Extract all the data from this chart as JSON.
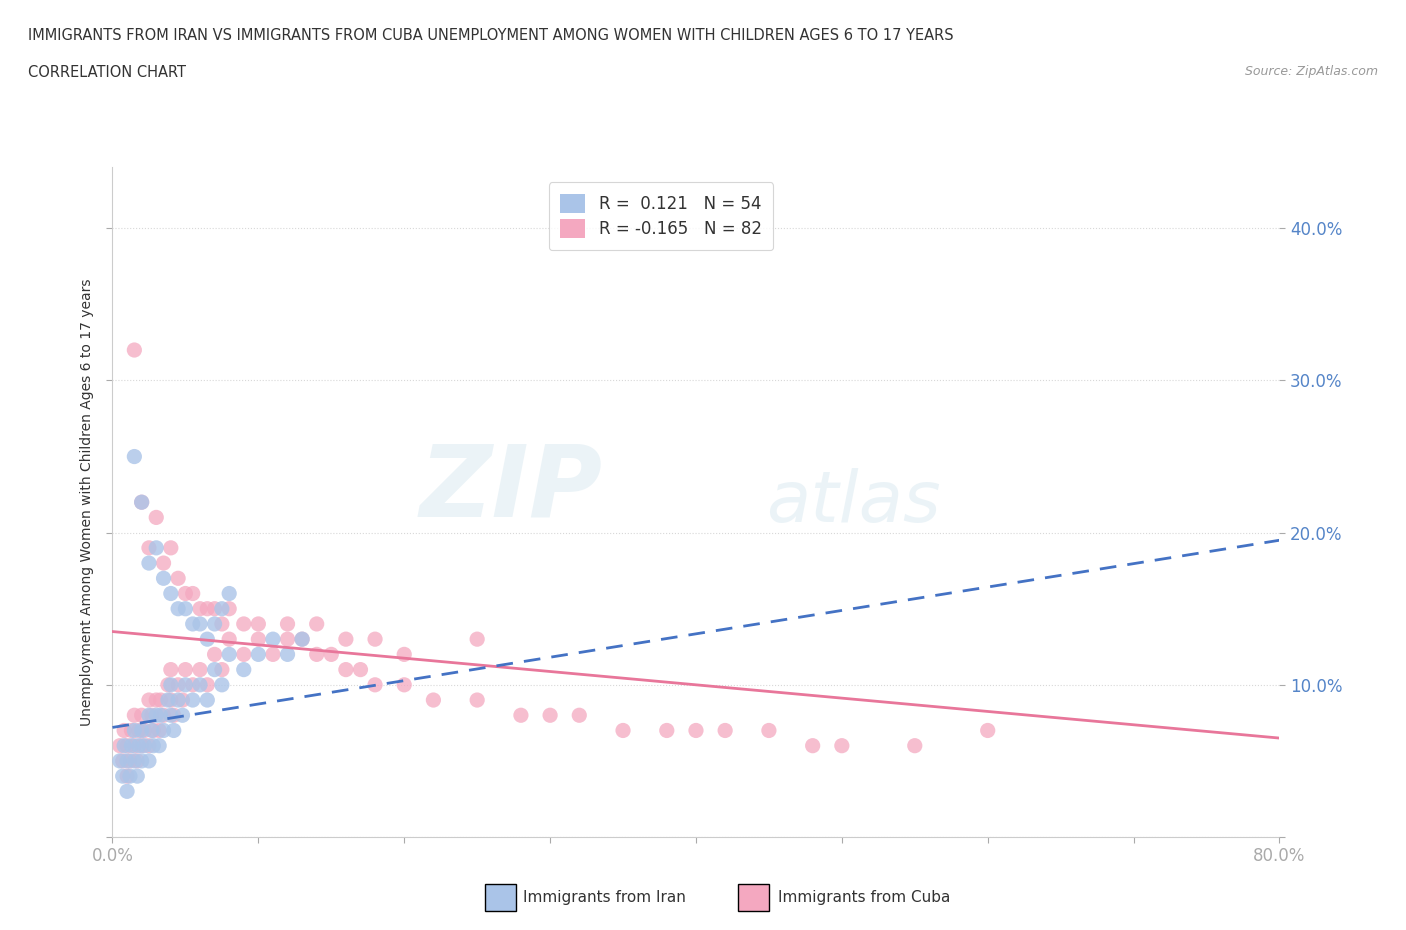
{
  "title_line1": "IMMIGRANTS FROM IRAN VS IMMIGRANTS FROM CUBA UNEMPLOYMENT AMONG WOMEN WITH CHILDREN AGES 6 TO 17 YEARS",
  "title_line2": "CORRELATION CHART",
  "source_text": "Source: ZipAtlas.com",
  "ylabel": "Unemployment Among Women with Children Ages 6 to 17 years",
  "xlim": [
    0.0,
    0.8
  ],
  "ylim": [
    0.0,
    0.44
  ],
  "iran_color": "#aac4e8",
  "cuba_color": "#f4a8c0",
  "iran_line_color": "#4472c4",
  "cuba_line_color": "#e8769a",
  "R_iran": 0.121,
  "N_iran": 54,
  "R_cuba": -0.165,
  "N_cuba": 82,
  "background_color": "#ffffff",
  "grid_color": "#d8d8d8",
  "iran_x": [
    0.005,
    0.007,
    0.008,
    0.01,
    0.01,
    0.012,
    0.013,
    0.015,
    0.015,
    0.017,
    0.018,
    0.02,
    0.02,
    0.022,
    0.025,
    0.025,
    0.027,
    0.028,
    0.03,
    0.032,
    0.033,
    0.035,
    0.038,
    0.04,
    0.04,
    0.042,
    0.045,
    0.048,
    0.05,
    0.055,
    0.06,
    0.065,
    0.07,
    0.075,
    0.08,
    0.09,
    0.1,
    0.11,
    0.12,
    0.13,
    0.015,
    0.02,
    0.025,
    0.03,
    0.035,
    0.04,
    0.045,
    0.05,
    0.055,
    0.06,
    0.065,
    0.07,
    0.075,
    0.08
  ],
  "iran_y": [
    0.05,
    0.04,
    0.06,
    0.03,
    0.05,
    0.04,
    0.06,
    0.05,
    0.07,
    0.04,
    0.06,
    0.05,
    0.07,
    0.06,
    0.08,
    0.05,
    0.07,
    0.06,
    0.08,
    0.06,
    0.08,
    0.07,
    0.09,
    0.08,
    0.1,
    0.07,
    0.09,
    0.08,
    0.1,
    0.09,
    0.1,
    0.09,
    0.11,
    0.1,
    0.12,
    0.11,
    0.12,
    0.13,
    0.12,
    0.13,
    0.25,
    0.22,
    0.18,
    0.19,
    0.17,
    0.16,
    0.15,
    0.15,
    0.14,
    0.14,
    0.13,
    0.14,
    0.15,
    0.16
  ],
  "cuba_x": [
    0.005,
    0.007,
    0.008,
    0.01,
    0.01,
    0.012,
    0.013,
    0.015,
    0.015,
    0.017,
    0.018,
    0.02,
    0.02,
    0.022,
    0.025,
    0.025,
    0.027,
    0.028,
    0.03,
    0.032,
    0.033,
    0.035,
    0.038,
    0.04,
    0.04,
    0.042,
    0.045,
    0.048,
    0.05,
    0.055,
    0.06,
    0.065,
    0.07,
    0.075,
    0.08,
    0.09,
    0.1,
    0.11,
    0.12,
    0.13,
    0.14,
    0.15,
    0.16,
    0.17,
    0.18,
    0.2,
    0.22,
    0.25,
    0.28,
    0.3,
    0.32,
    0.35,
    0.38,
    0.4,
    0.42,
    0.45,
    0.48,
    0.5,
    0.55,
    0.6,
    0.015,
    0.02,
    0.025,
    0.03,
    0.035,
    0.04,
    0.045,
    0.05,
    0.055,
    0.06,
    0.065,
    0.07,
    0.075,
    0.08,
    0.09,
    0.1,
    0.12,
    0.14,
    0.16,
    0.18,
    0.2,
    0.25
  ],
  "cuba_y": [
    0.06,
    0.05,
    0.07,
    0.04,
    0.06,
    0.05,
    0.07,
    0.06,
    0.08,
    0.05,
    0.07,
    0.06,
    0.08,
    0.07,
    0.09,
    0.06,
    0.08,
    0.07,
    0.09,
    0.07,
    0.09,
    0.08,
    0.1,
    0.09,
    0.11,
    0.08,
    0.1,
    0.09,
    0.11,
    0.1,
    0.11,
    0.1,
    0.12,
    0.11,
    0.13,
    0.12,
    0.13,
    0.12,
    0.14,
    0.13,
    0.12,
    0.12,
    0.11,
    0.11,
    0.1,
    0.1,
    0.09,
    0.09,
    0.08,
    0.08,
    0.08,
    0.07,
    0.07,
    0.07,
    0.07,
    0.07,
    0.06,
    0.06,
    0.06,
    0.07,
    0.32,
    0.22,
    0.19,
    0.21,
    0.18,
    0.19,
    0.17,
    0.16,
    0.16,
    0.15,
    0.15,
    0.15,
    0.14,
    0.15,
    0.14,
    0.14,
    0.13,
    0.14,
    0.13,
    0.13,
    0.12,
    0.13
  ],
  "iran_trend_x": [
    0.0,
    0.8
  ],
  "iran_trend_y": [
    0.072,
    0.195
  ],
  "cuba_trend_x": [
    0.0,
    0.8
  ],
  "cuba_trend_y": [
    0.135,
    0.065
  ]
}
